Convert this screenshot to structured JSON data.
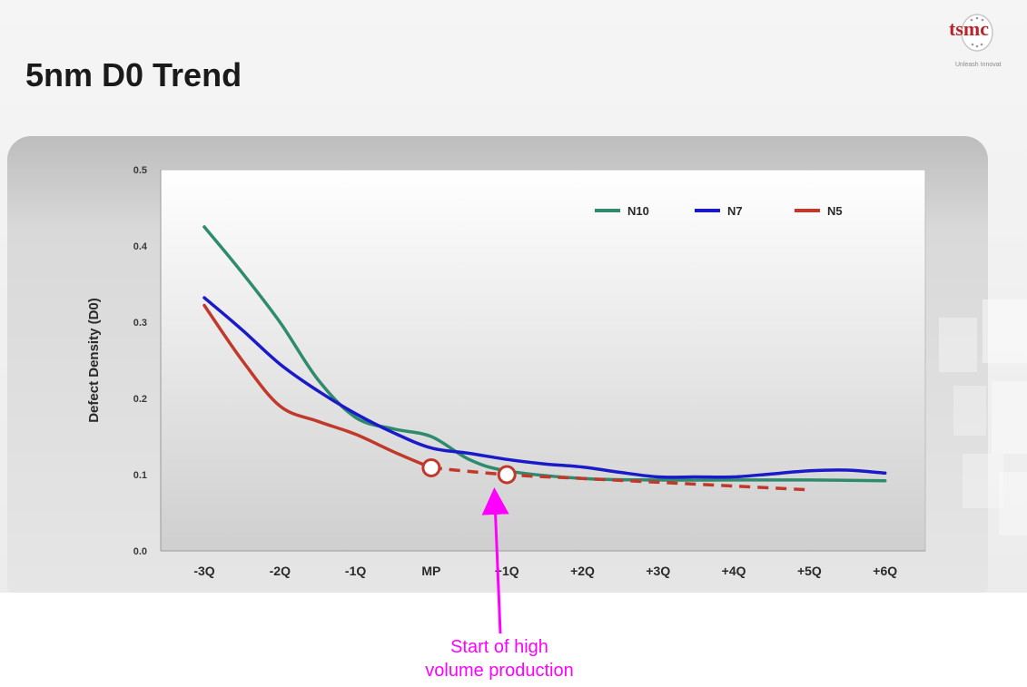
{
  "slide": {
    "title": "5nm D0 Trend",
    "logo_text": "tsmc",
    "logo_tagline": "Unleash Innovat"
  },
  "annotation": {
    "line1": "Start of high",
    "line2": "volume production",
    "color": "#ff00ff",
    "points_to": "+1Q"
  },
  "chart_data": {
    "type": "line",
    "title": "5nm D0 Trend",
    "ylabel": "Defect Density (D0)",
    "xlabel": "",
    "categories": [
      "-3Q",
      "-2Q",
      "-1Q",
      "MP",
      "+1Q",
      "+2Q",
      "+3Q",
      "+4Q",
      "+5Q",
      "+6Q"
    ],
    "ylim": [
      0,
      0.5
    ],
    "yticks": [
      "0.0",
      "0.1",
      "0.2",
      "0.3",
      "0.4",
      "0.5"
    ],
    "yticks_values": [
      0,
      0.1,
      0.2,
      0.3,
      0.4,
      0.5
    ],
    "grid": false,
    "legend_position": "top-right",
    "series": [
      {
        "name": "N10",
        "color": "#2e8b6e",
        "style": "solid",
        "x": [
          0,
          0.5,
          1,
          1.5,
          2,
          2.5,
          3,
          3.5,
          4,
          5,
          6,
          7,
          8,
          9
        ],
        "values": [
          0.425,
          0.365,
          0.3,
          0.225,
          0.175,
          0.16,
          0.15,
          0.12,
          0.105,
          0.095,
          0.093,
          0.093,
          0.093,
          0.092
        ]
      },
      {
        "name": "N7",
        "color": "#1a1ac8",
        "style": "solid",
        "x": [
          0,
          0.5,
          1,
          1.5,
          2,
          2.5,
          3,
          3.5,
          4,
          4.5,
          5,
          5.5,
          6,
          6.5,
          7,
          7.5,
          8,
          8.5,
          9
        ],
        "values": [
          0.332,
          0.29,
          0.245,
          0.21,
          0.18,
          0.155,
          0.135,
          0.128,
          0.12,
          0.114,
          0.11,
          0.103,
          0.097,
          0.097,
          0.097,
          0.101,
          0.105,
          0.106,
          0.102
        ]
      },
      {
        "name": "N5",
        "color": "#c0392b",
        "style": "solid",
        "x": [
          0,
          0.5,
          1,
          1.5,
          2,
          2.5,
          3
        ],
        "values": [
          0.322,
          0.25,
          0.19,
          0.17,
          0.153,
          0.13,
          0.109
        ]
      },
      {
        "name": "N5",
        "color": "#c0392b",
        "style": "dashed",
        "x": [
          3,
          4,
          5,
          6,
          7,
          8
        ],
        "values": [
          0.109,
          0.1,
          0.095,
          0.09,
          0.085,
          0.08
        ]
      }
    ],
    "markers": [
      {
        "label": "MP",
        "x": 3,
        "y": 0.109
      },
      {
        "label": "+1Q",
        "x": 4,
        "y": 0.1
      }
    ]
  }
}
